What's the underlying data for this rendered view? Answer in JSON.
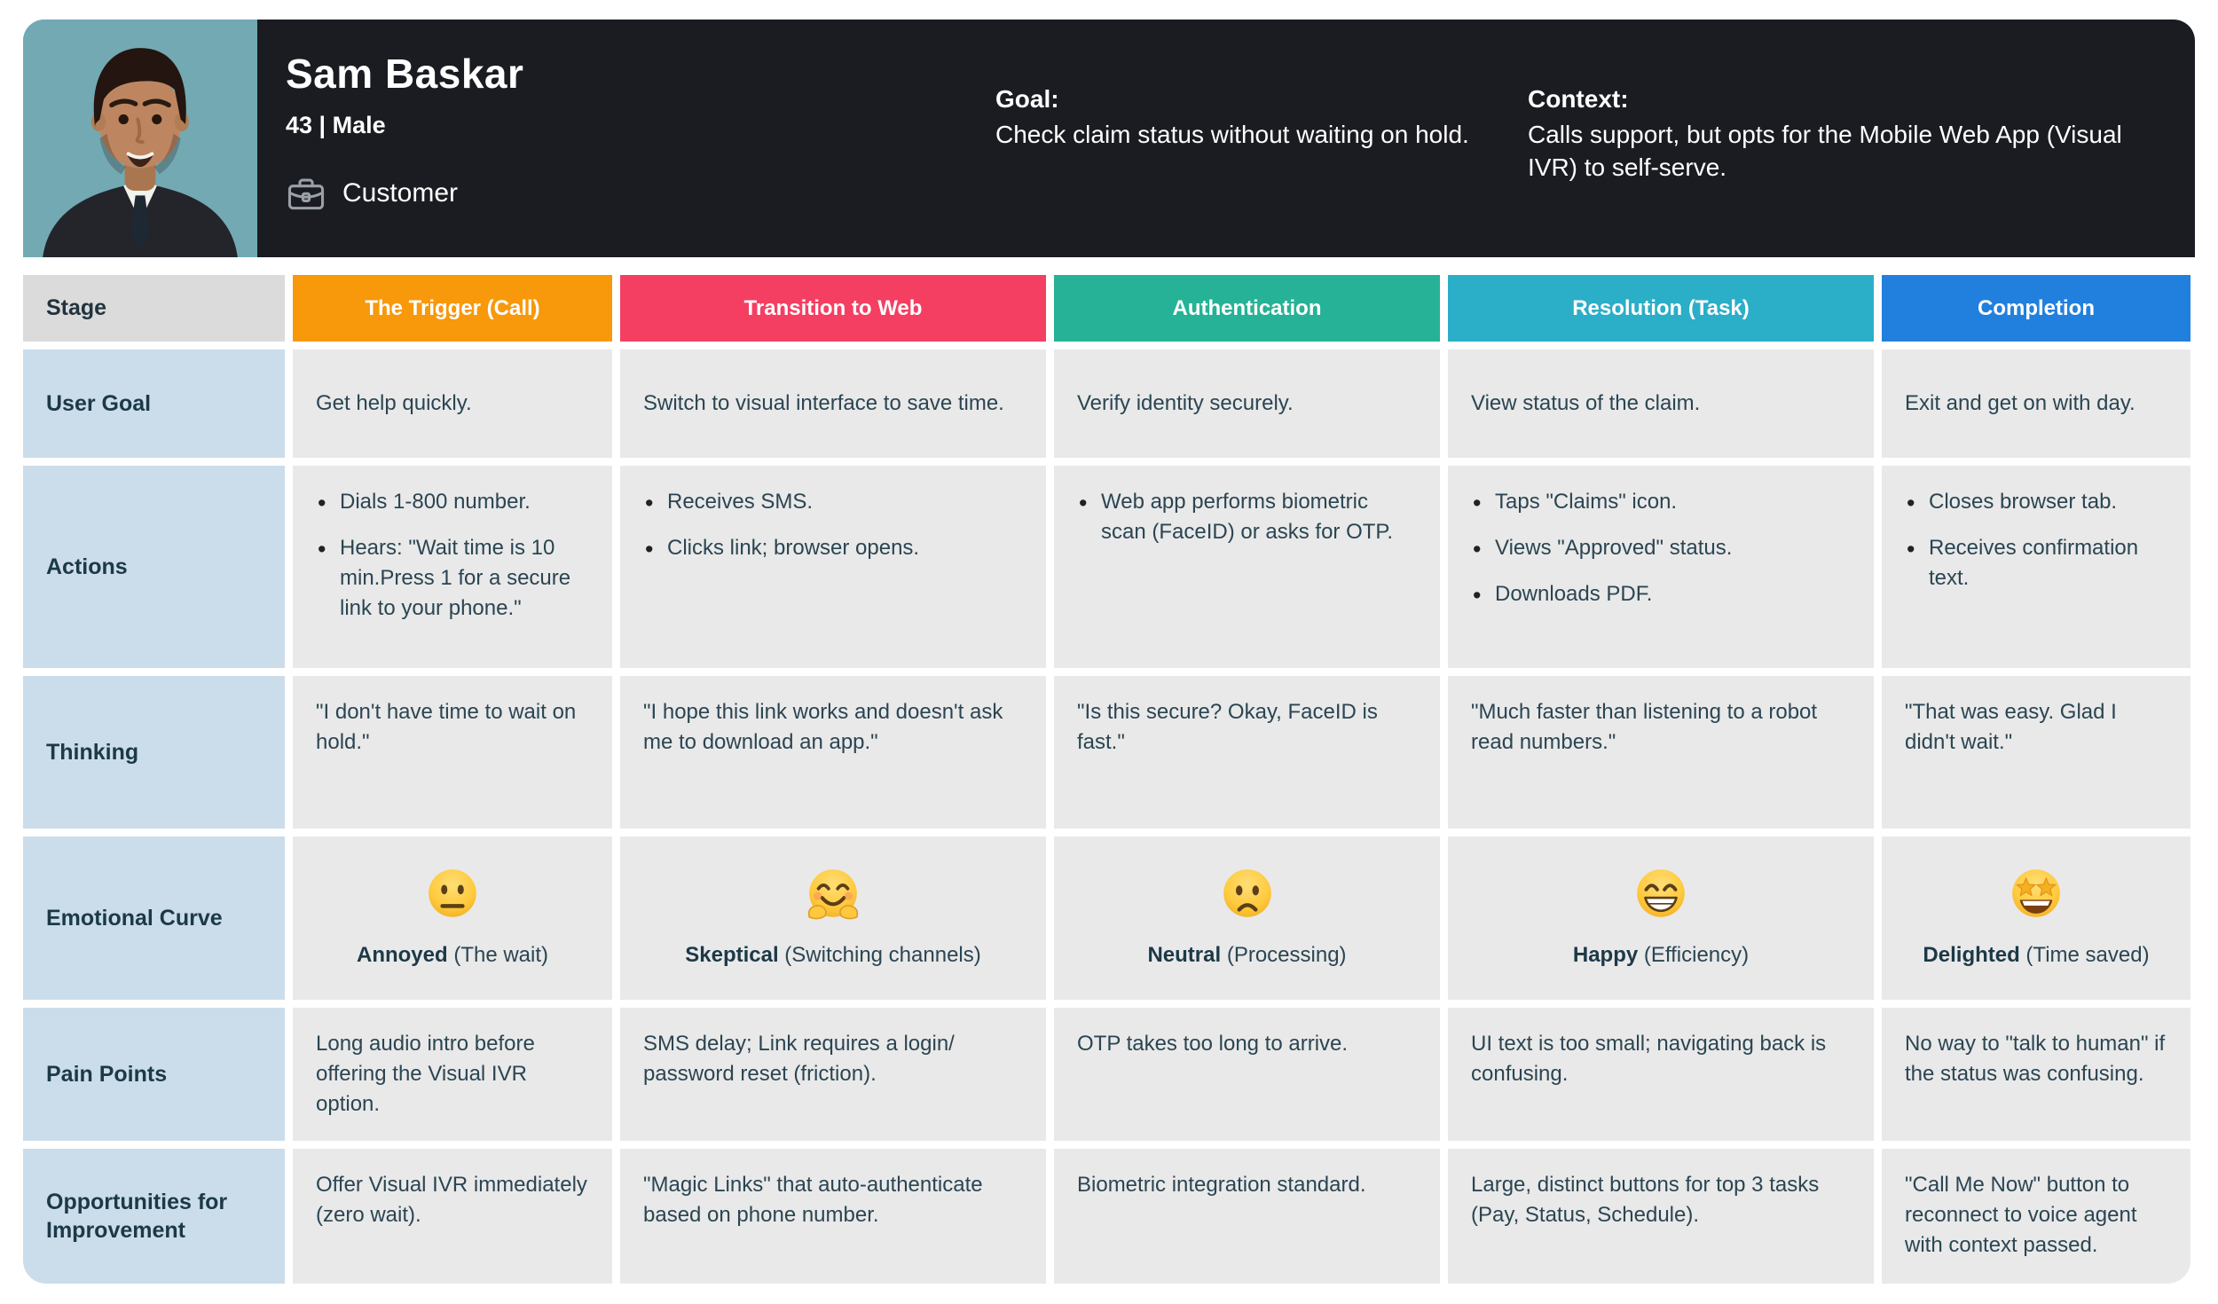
{
  "persona": {
    "name": "Sam Baskar",
    "demographics": "43 | Male",
    "role": "Customer",
    "goal_label": "Goal:",
    "goal": "Check claim status without waiting on hold.",
    "context_label": "Context:",
    "context": "Calls support, but opts for the Mobile Web App (Visual IVR) to self-serve.",
    "avatar_bg_color": "#72A9B2"
  },
  "table": {
    "corner_label": "Stage",
    "stages": [
      {
        "label": "The Trigger (Call)",
        "color": "#F8980B"
      },
      {
        "label": "Transition to Web",
        "color": "#F43F62"
      },
      {
        "label": "Authentication",
        "color": "#26B296"
      },
      {
        "label": "Resolution (Task)",
        "color": "#2BAEC8"
      },
      {
        "label": "Completion",
        "color": "#2180DE"
      }
    ],
    "rows": [
      {
        "label": "User Goal",
        "type": "text",
        "cells": [
          "Get help quickly.",
          "Switch to visual interface to save time.",
          "Verify identity securely.",
          "View status of the claim.",
          "Exit and get on with day."
        ]
      },
      {
        "label": "Actions",
        "type": "bullets",
        "cells": [
          [
            "Dials 1-800 number.",
            "Hears: \"Wait time is 10 min.Press 1 for a secure link to your phone.\""
          ],
          [
            "Receives SMS.",
            "Clicks link; browser opens."
          ],
          [
            "Web app performs biometric scan (FaceID) or asks for OTP."
          ],
          [
            "Taps \"Claims\" icon.",
            "Views \"Approved\" status.",
            "Downloads PDF."
          ],
          [
            "Closes browser tab.",
            "Receives confirmation text."
          ]
        ]
      },
      {
        "label": "Thinking",
        "type": "text",
        "cells": [
          "\"I don't have time to wait on hold.\"",
          "\"I hope this link works and doesn't ask me to download an app.\"",
          "\"Is this secure? Okay, FaceID is fast.\"",
          "\"Much faster than listening to a robot read numbers.\"",
          "\"That was easy. Glad I didn't wait.\""
        ]
      },
      {
        "label": "Emotional Curve",
        "type": "emotion",
        "cells": [
          {
            "icon": "neutral-face-emoji",
            "emotion": "Annoyed",
            "note": "(The wait)"
          },
          {
            "icon": "hugging-face-emoji",
            "emotion": "Skeptical",
            "note": "(Switching channels)"
          },
          {
            "icon": "frowning-face-emoji",
            "emotion": "Neutral",
            "note": "(Processing)"
          },
          {
            "icon": "beaming-face-emoji",
            "emotion": "Happy",
            "note": "(Efficiency)"
          },
          {
            "icon": "star-struck-emoji",
            "emotion": "Delighted",
            "note": "(Time saved)"
          }
        ]
      },
      {
        "label": "Pain Points",
        "type": "text",
        "cells": [
          "Long audio intro before offering the Visual IVR option.",
          "SMS delay; Link requires a login/ password reset (friction).",
          "OTP takes too long to arrive.",
          "UI text is too small; navigating back is confusing.",
          "No way to \"talk to human\" if the status was confusing."
        ]
      },
      {
        "label": "Opportunities for Improvement",
        "type": "text",
        "cells": [
          "Offer Visual IVR immediately (zero wait).",
          "\"Magic Links\" that auto-authenticate based on phone number.",
          "Biometric integration standard.",
          "Large, distinct buttons for top 3 tasks (Pay, Status, Schedule).",
          "\"Call Me Now\" button to reconnect to voice agent with context passed."
        ]
      }
    ]
  }
}
